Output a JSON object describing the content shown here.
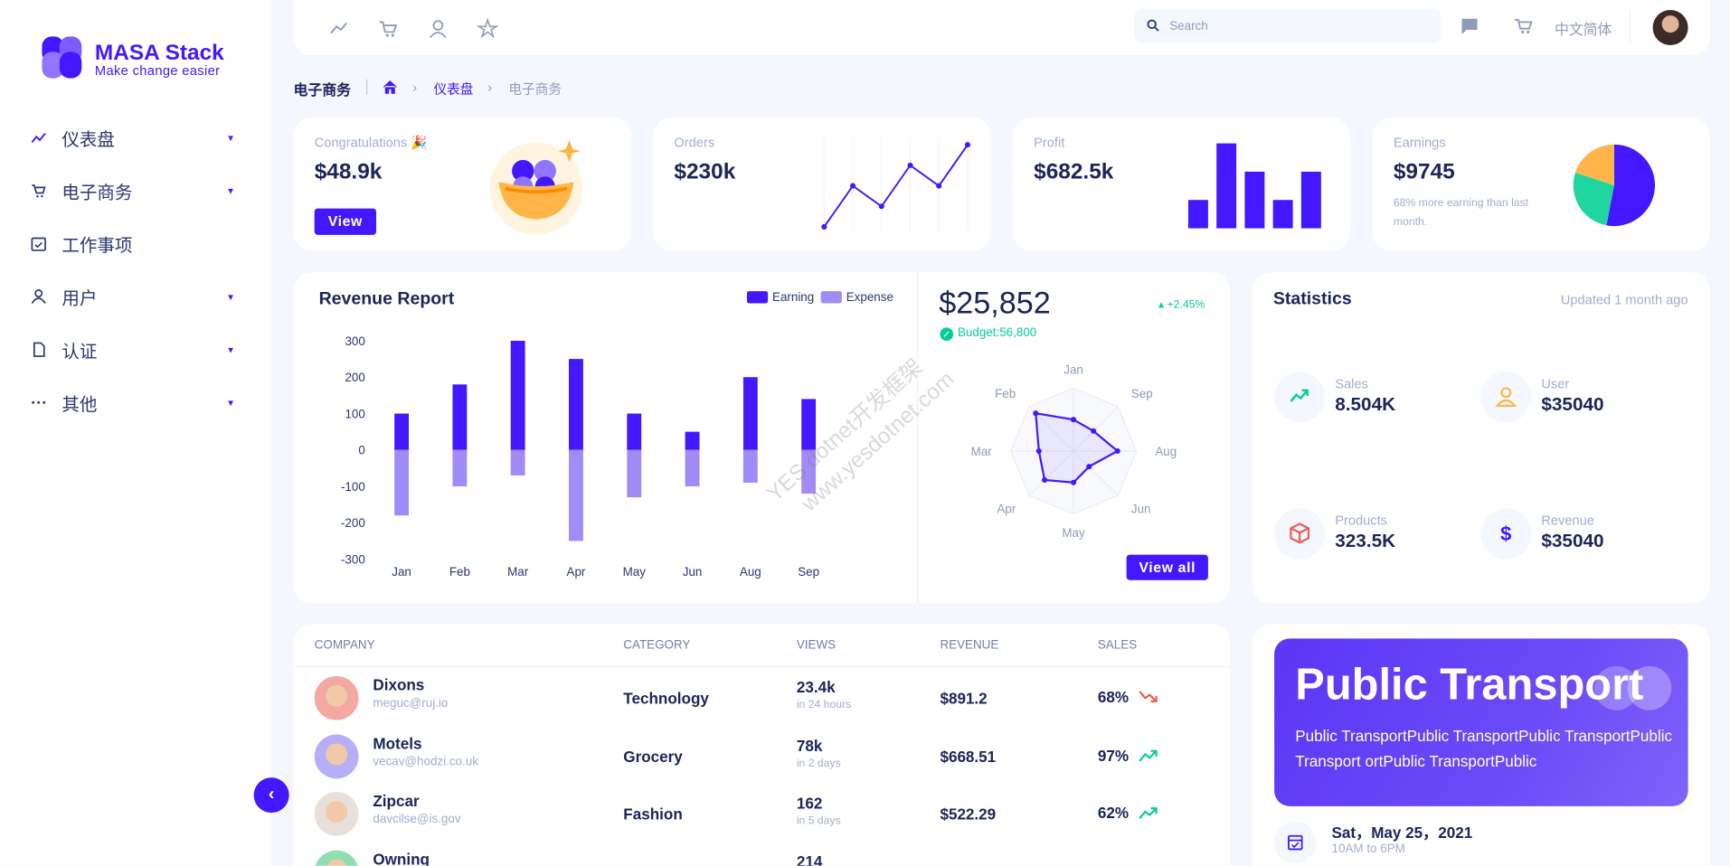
{
  "logo": {
    "title": "MASA Stack",
    "subtitle": "Make change easier"
  },
  "sidebar": {
    "items": [
      "仪表盘",
      "电子商务",
      "工作事项",
      "用户",
      "认证",
      "其他"
    ]
  },
  "topbar": {
    "search": "Search",
    "language": "中文简体"
  },
  "breadcrumb": {
    "title": "电子商务",
    "items": [
      "仪表盘",
      "电子商务"
    ]
  },
  "congrats": {
    "label": "Congratulations 🎉",
    "value": "$48.9k",
    "button": "View"
  },
  "orders": {
    "label": "Orders",
    "value": "$230k",
    "chart": {
      "type": "line",
      "values": [
        10,
        50,
        30,
        70,
        50,
        90
      ],
      "ylim": [
        0,
        100
      ],
      "color": "#4318ff"
    }
  },
  "profit": {
    "label": "Profit",
    "value": "$682.5k",
    "chart": {
      "type": "bar",
      "values": [
        25,
        75,
        50,
        25,
        50
      ],
      "ylim": [
        0,
        75
      ],
      "color": "#4318ff"
    }
  },
  "earnings": {
    "label": "Earnings",
    "value": "$9745",
    "note": "68% more earning than last month.",
    "chart": {
      "type": "pie",
      "values": [
        53,
        27,
        20
      ],
      "colors": [
        "#4318ff",
        "#1fd6a0",
        "#ffb547"
      ]
    }
  },
  "revenue": {
    "title": "Revenue Report",
    "chart": {
      "type": "bar",
      "categories": [
        "Jan",
        "Feb",
        "Mar",
        "Apr",
        "May",
        "Jun",
        "Aug",
        "Sep"
      ],
      "series": [
        {
          "name": "Earning",
          "color": "#4318ff",
          "values": [
            100,
            180,
            300,
            250,
            100,
            50,
            200,
            140
          ]
        },
        {
          "name": "Expense",
          "color": "#a08cf7",
          "values": [
            -180,
            -100,
            -70,
            -250,
            -130,
            -100,
            -90,
            -120
          ]
        }
      ],
      "ylim": [
        -300,
        300
      ],
      "yticks": [
        300,
        200,
        100,
        0,
        -100,
        -200,
        -300
      ]
    }
  },
  "budget": {
    "value": "$25,852",
    "change": "+2.45%",
    "budget": "Budget:56,800",
    "button": "View all",
    "chart": {
      "type": "radar",
      "categories": [
        "Jan",
        "Sep",
        "Aug",
        "Jun",
        "May",
        "Apr",
        "Mar",
        "Feb"
      ],
      "values": [
        50,
        45,
        70,
        35,
        50,
        65,
        55,
        85
      ],
      "ylim": [
        0,
        100
      ],
      "color": "#4318ff"
    }
  },
  "statistics": {
    "title": "Statistics",
    "updated": "Updated 1 month ago",
    "items": [
      {
        "label": "Sales",
        "value": "8.504K"
      },
      {
        "label": "User",
        "value": "$35040"
      },
      {
        "label": "Products",
        "value": "323.5K"
      },
      {
        "label": "Revenue",
        "value": "$35040"
      }
    ]
  },
  "table": {
    "headers": [
      "COMPANY",
      "CATEGORY",
      "VIEWS",
      "REVENUE",
      "SALES"
    ],
    "rows": [
      {
        "company": "Dixons",
        "email": "meguc@ruj.io",
        "category": "Technology",
        "views": "23.4k",
        "period": "in 24 hours",
        "revenue": "$891.2",
        "sales": "68%",
        "trend": "down"
      },
      {
        "company": "Motels",
        "email": "vecav@hodzi.co.uk",
        "category": "Grocery",
        "views": "78k",
        "period": "in 2 days",
        "revenue": "$668.51",
        "sales": "97%",
        "trend": "up"
      },
      {
        "company": "Zipcar",
        "email": "davcilse@is.gov",
        "category": "Fashion",
        "views": "162",
        "period": "in 5 days",
        "revenue": "$522.29",
        "sales": "62%",
        "trend": "up"
      },
      {
        "company": "Owning",
        "views": "214"
      }
    ]
  },
  "promo": {
    "title": "Public Transport",
    "text": "Public TransportPublic TransportPublic TransportPublic Transport ortPublic TransportPublic",
    "date": "Sat，May 25，2021",
    "time": "10AM to 6PM"
  },
  "watermark": {
    "lines": [
      "YES dotnet开发框架",
      "www.yesdotnet.com"
    ]
  }
}
